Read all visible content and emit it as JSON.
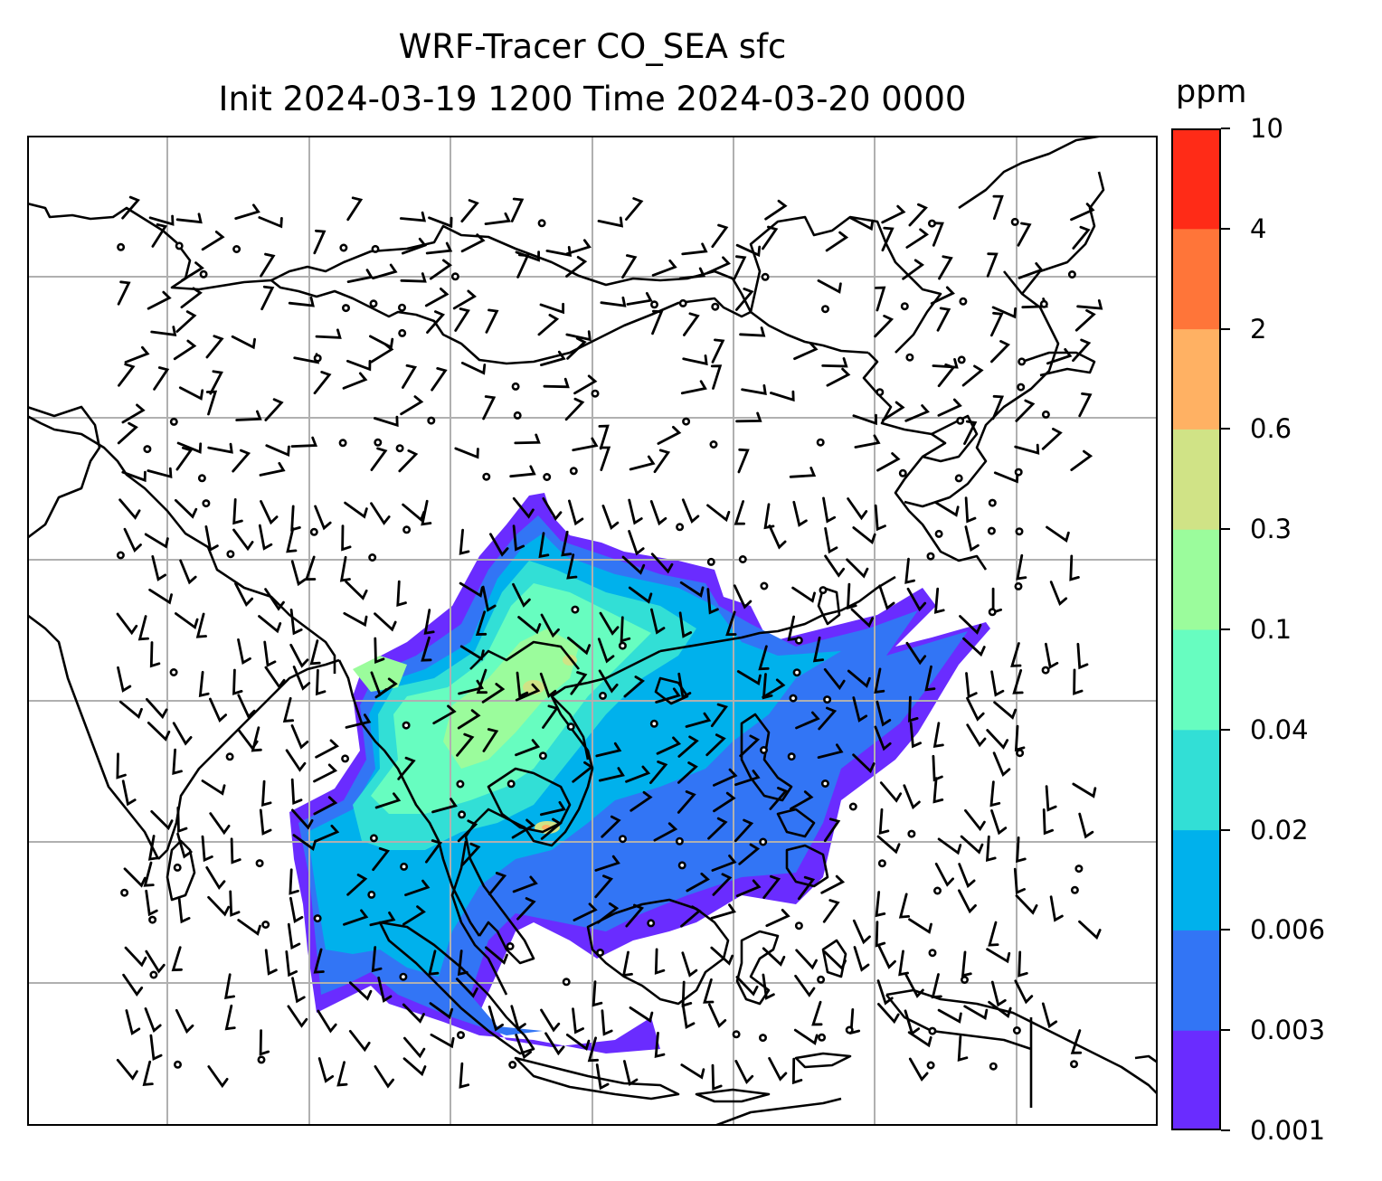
{
  "title_line1": "WRF-Tracer CO_SEA sfc",
  "title_line2": "Init 2024-03-19 1200 Time 2024-03-20 0000",
  "colorbar": {
    "unit": "ppm",
    "ticks": [
      "0.001",
      "0.003",
      "0.006",
      "0.02",
      "0.04",
      "0.1",
      "0.3",
      "0.6",
      "2",
      "4",
      "10"
    ],
    "colors": [
      "#6a2cff",
      "#3275f5",
      "#00b1ec",
      "#32dfd6",
      "#67fdc0",
      "#9bfc9c",
      "#d0e386",
      "#ffb163",
      "#ff7539",
      "#ff2b17"
    ]
  },
  "map": {
    "variable": "CO_SEA tracer",
    "level": "sfc",
    "grid_lines": true,
    "coastlines_color": "#000000",
    "wind_barbs": true
  }
}
